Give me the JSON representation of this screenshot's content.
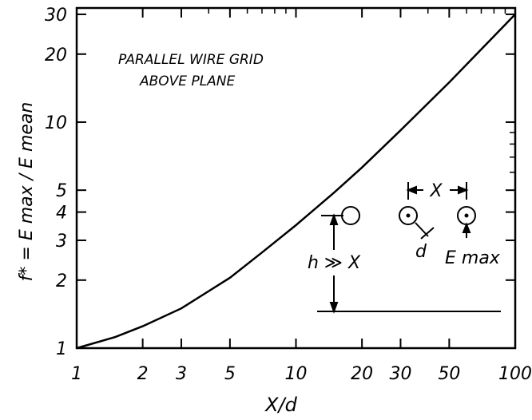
{
  "chart_data": {
    "type": "line",
    "xscale": "log",
    "yscale": "log",
    "xlim": [
      1,
      100
    ],
    "ylim": [
      1,
      32
    ],
    "xlabel": "X/d",
    "ylabel": "f* = E max / E mean",
    "grid": false,
    "x_ticks": [
      {
        "value": 1,
        "label": "1"
      },
      {
        "value": 2,
        "label": "2"
      },
      {
        "value": 3,
        "label": "3"
      },
      {
        "value": 5,
        "label": "5"
      },
      {
        "value": 10,
        "label": "10"
      },
      {
        "value": 20,
        "label": "20"
      },
      {
        "value": 30,
        "label": "30"
      },
      {
        "value": 50,
        "label": "50"
      },
      {
        "value": 100,
        "label": "100"
      }
    ],
    "y_ticks": [
      {
        "value": 1,
        "label": "1"
      },
      {
        "value": 2,
        "label": "2"
      },
      {
        "value": 3,
        "label": "3"
      },
      {
        "value": 4,
        "label": "4"
      },
      {
        "value": 5,
        "label": "5"
      },
      {
        "value": 10,
        "label": "10"
      },
      {
        "value": 20,
        "label": "20"
      },
      {
        "value": 30,
        "label": "30"
      }
    ],
    "series": [
      {
        "x": [
          1,
          1.5,
          2,
          3,
          5,
          7,
          10,
          15,
          20,
          30,
          50,
          70,
          100
        ],
        "y": [
          1.0,
          1.12,
          1.25,
          1.5,
          2.05,
          2.65,
          3.5,
          4.9,
          6.3,
          9.2,
          15.0,
          21.0,
          30.0
        ]
      }
    ],
    "annotations": {
      "title_line1": "PARALLEL WIRE GRID",
      "title_line2": "ABOVE PLANE",
      "spacing_label": "X",
      "diameter_label": "d",
      "height_label": "h ≫ X",
      "emax_label": "E max"
    }
  }
}
